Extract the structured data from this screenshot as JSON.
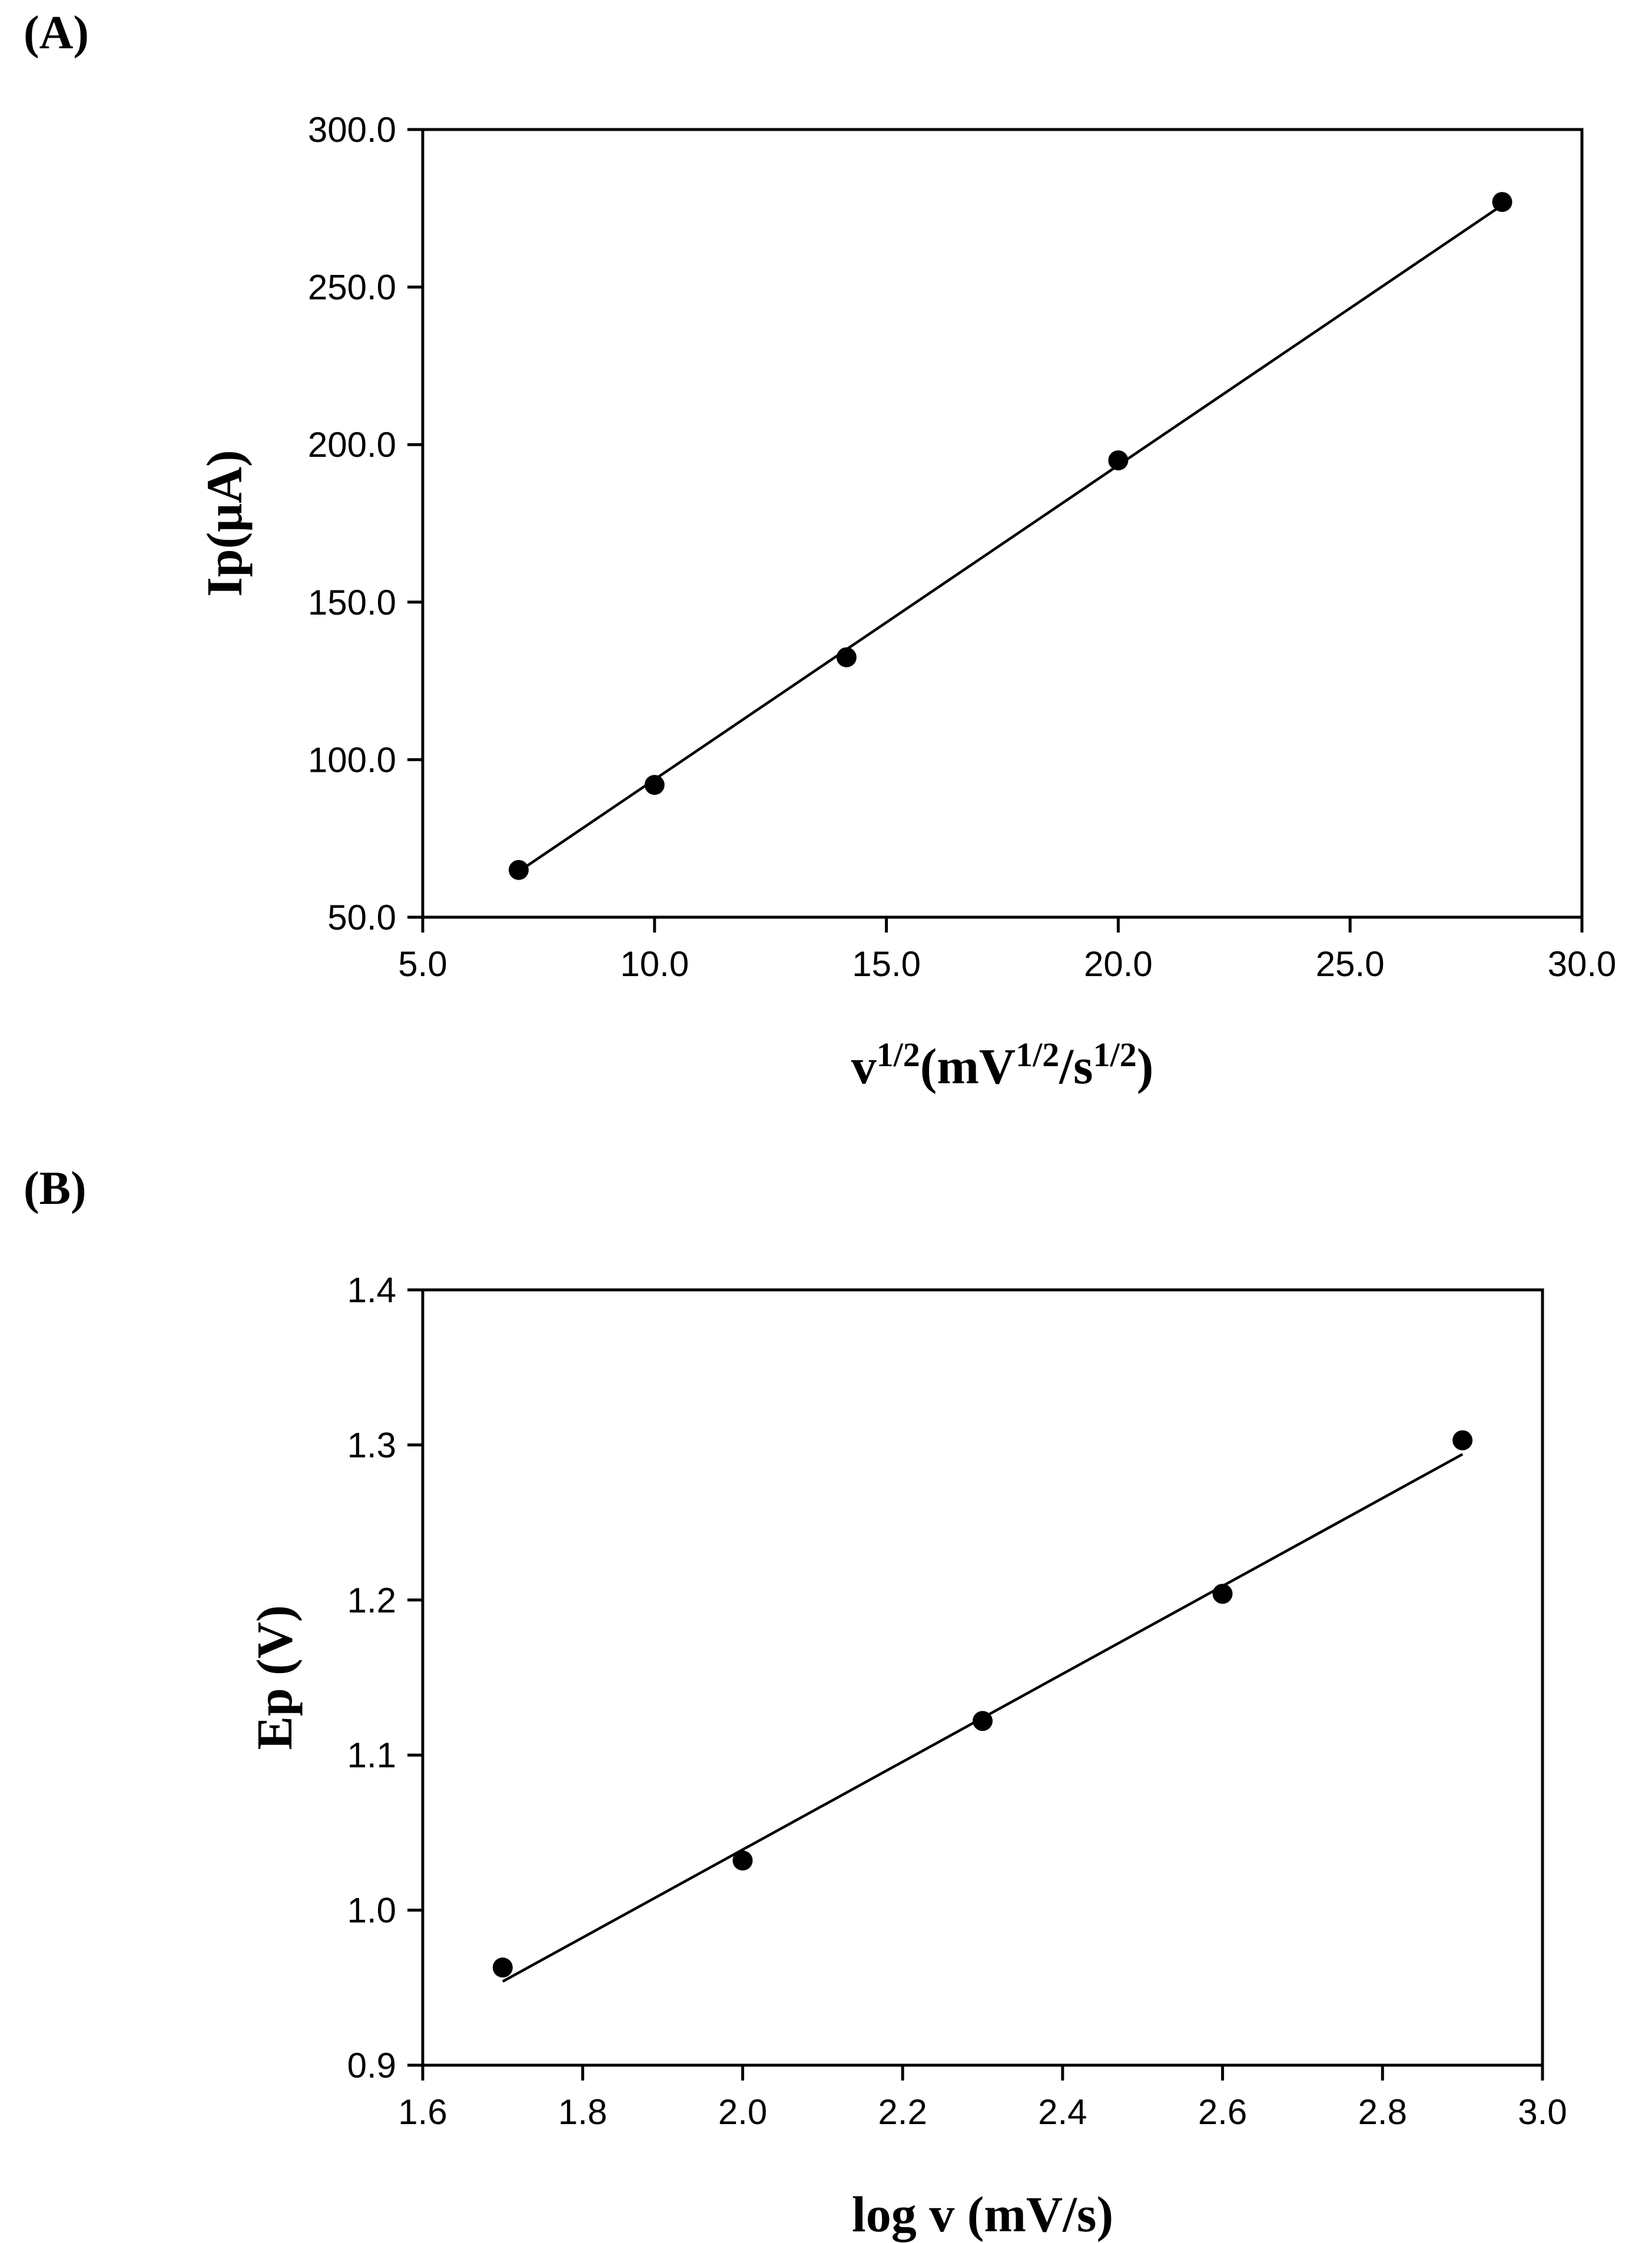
{
  "chart_data": [
    {
      "type": "scatter",
      "panel_label": "(A)",
      "xlabel": "v1/2(mV1/2/s1/2)",
      "xlabel_parts": [
        {
          "text": "v",
          "sup": false
        },
        {
          "text": "1/2",
          "sup": true
        },
        {
          "text": "(mV",
          "sup": false
        },
        {
          "text": "1/2",
          "sup": true
        },
        {
          "text": "/s",
          "sup": false
        },
        {
          "text": "1/2",
          "sup": true
        },
        {
          "text": ")",
          "sup": false
        }
      ],
      "ylabel": "Ip(μA)",
      "xlim": [
        5.0,
        30.0
      ],
      "ylim": [
        50.0,
        300.0
      ],
      "xticks": [
        "5.0",
        "10.0",
        "15.0",
        "20.0",
        "25.0",
        "30.0"
      ],
      "yticks": [
        "50.0",
        "100.0",
        "150.0",
        "200.0",
        "250.0",
        "300.0"
      ],
      "x": [
        7.07,
        10.0,
        14.14,
        20.0,
        28.28
      ],
      "y": [
        65.0,
        92.0,
        132.5,
        195.0,
        277.0
      ],
      "fit_line": {
        "x": [
          7.07,
          28.28
        ],
        "y": [
          64.5,
          276.0
        ]
      },
      "grid": false
    },
    {
      "type": "scatter",
      "panel_label": "(B)",
      "xlabel": "log v (mV/s)",
      "ylabel": "Ep (V)",
      "xlim": [
        1.6,
        3.0
      ],
      "ylim": [
        0.9,
        1.4
      ],
      "xticks": [
        "1.6",
        "1.8",
        "2.0",
        "2.2",
        "2.4",
        "2.6",
        "2.8",
        "3.0"
      ],
      "yticks": [
        "0.9",
        "1.0",
        "1.1",
        "1.2",
        "1.3",
        "1.4"
      ],
      "x": [
        1.7,
        2.0,
        2.3,
        2.6,
        2.9
      ],
      "y": [
        0.963,
        1.032,
        1.122,
        1.204,
        1.303
      ],
      "fit_line": {
        "x": [
          1.7,
          2.9
        ],
        "y": [
          0.954,
          1.294
        ]
      },
      "grid": false
    }
  ]
}
